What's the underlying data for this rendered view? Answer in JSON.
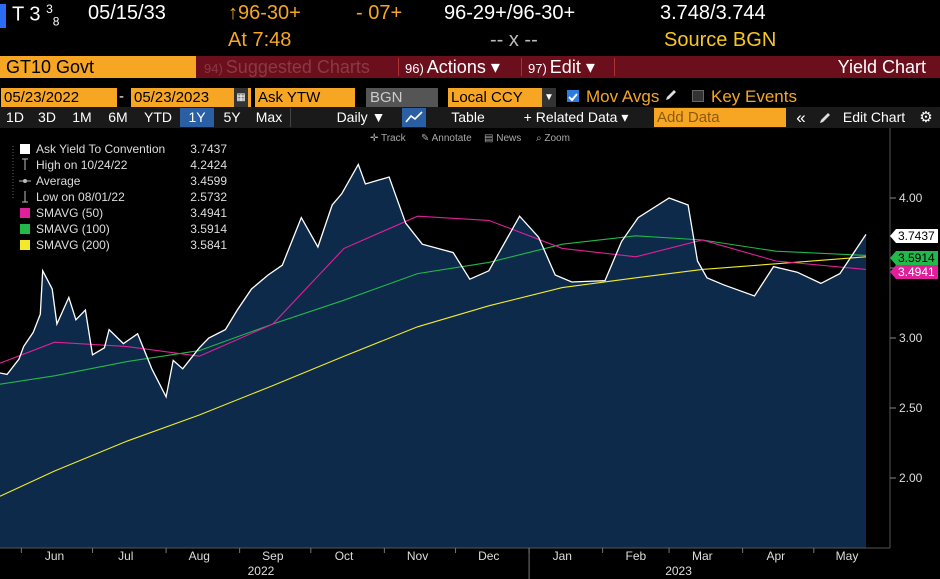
{
  "ticker": {
    "security": "T 3",
    "coupon_frac_num": "3",
    "coupon_frac_den": "8",
    "maturity": "05/15/33",
    "price": "↑96-30+",
    "change": "- 07+",
    "bid_ask": "96-29+/96-30+",
    "yields": "3.748/3.744",
    "time_label": "At 7:48",
    "dashes": "-- x --",
    "source": "Source BGN"
  },
  "function_bar": {
    "security_box": "GT10 Govt",
    "suggested_num": "94)",
    "suggested_label": "Suggested Charts",
    "actions_num": "96)",
    "actions_label": "Actions ▾",
    "edit_num": "97)",
    "edit_label": "Edit ▾",
    "title": "Yield Chart"
  },
  "controls": {
    "start_date": "05/23/2022",
    "end_date": "05/23/2023",
    "field": "Ask YTW",
    "source": "BGN",
    "currency": "Local CCY",
    "mov_avgs": "Mov Avgs",
    "key_events": "Key Events"
  },
  "ranges": [
    "1D",
    "3D",
    "1M",
    "6M",
    "YTD",
    "1Y",
    "5Y",
    "Max"
  ],
  "active_range": "1Y",
  "toolbar": {
    "frequency": "Daily ▼",
    "table": "Table",
    "related": "+ Related Data ▾",
    "add_data_placeholder": "Add Data",
    "collapse": "«",
    "edit_chart": "Edit Chart",
    "track": "Track",
    "annotate": "Annotate",
    "news": "News",
    "zoom": "Zoom"
  },
  "colors": {
    "orange": "#f6a623",
    "area_fill": "#0d2a4a",
    "yield_line": "#ffffff",
    "sma50": "#e0209a",
    "sma100": "#22b84a",
    "sma200": "#f2ea2a",
    "active_blue": "#2b5fa3"
  },
  "chart_data": {
    "type": "area",
    "x_axis": {
      "months": [
        "Jun",
        "Jul",
        "Aug",
        "Sep",
        "Oct",
        "Nov",
        "Dec",
        "Jan",
        "Feb",
        "Mar",
        "Apr",
        "May"
      ],
      "years": [
        "2022",
        "2023"
      ],
      "range": [
        "2022-05-23",
        "2023-05-23"
      ]
    },
    "y_axis": {
      "ticks": [
        "4.00",
        "3.50",
        "3.00",
        "2.50",
        "2.00"
      ],
      "range": [
        1.5,
        4.5
      ],
      "side": "right"
    },
    "legend": [
      {
        "label": "Ask Yield To Convention",
        "value": "3.7437"
      },
      {
        "label": "High on 10/24/22",
        "value": "4.2424"
      },
      {
        "label": "Average",
        "value": "3.4599"
      },
      {
        "label": "Low on 08/01/22",
        "value": "2.5732"
      },
      {
        "label": "SMAVG (50)",
        "value": "3.4941"
      },
      {
        "label": "SMAVG (100)",
        "value": "3.5914"
      },
      {
        "label": "SMAVG (200)",
        "value": "3.5841"
      }
    ],
    "last_value_tags": [
      {
        "series": "Ask Yield To Convention",
        "value": "3.7437"
      },
      {
        "series": "SMAVG (100)",
        "value": "3.5914"
      },
      {
        "series": "SMAVG (50)",
        "value": "3.4941"
      }
    ],
    "series": [
      {
        "name": "Ask Yield To Convention",
        "x": [
          "2022-05-23",
          "2022-05-26",
          "2022-05-31",
          "2022-06-02",
          "2022-06-06",
          "2022-06-09",
          "2022-06-10",
          "2022-06-14",
          "2022-06-16",
          "2022-06-21",
          "2022-06-24",
          "2022-06-28",
          "2022-07-01",
          "2022-07-06",
          "2022-07-08",
          "2022-07-14",
          "2022-07-20",
          "2022-07-26",
          "2022-08-01",
          "2022-08-04",
          "2022-08-08",
          "2022-08-15",
          "2022-08-19",
          "2022-08-26",
          "2022-08-31",
          "2022-09-06",
          "2022-09-13",
          "2022-09-19",
          "2022-09-27",
          "2022-10-04",
          "2022-10-10",
          "2022-10-14",
          "2022-10-21",
          "2022-10-24",
          "2022-11-03",
          "2022-11-10",
          "2022-11-17",
          "2022-11-30",
          "2022-12-07",
          "2022-12-15",
          "2022-12-28",
          "2023-01-05",
          "2023-01-12",
          "2023-01-19",
          "2023-02-02",
          "2023-02-09",
          "2023-02-16",
          "2023-03-01",
          "2023-03-09",
          "2023-03-13",
          "2023-03-17",
          "2023-03-24",
          "2023-04-06",
          "2023-04-14",
          "2023-04-24",
          "2023-05-04",
          "2023-05-12",
          "2023-05-23"
        ],
        "values": [
          2.75,
          2.74,
          2.85,
          2.94,
          3.04,
          3.17,
          3.48,
          3.35,
          3.1,
          3.29,
          3.13,
          3.2,
          2.88,
          2.93,
          3.06,
          2.96,
          3.03,
          2.78,
          2.58,
          2.84,
          2.78,
          2.93,
          3.0,
          3.06,
          3.2,
          3.35,
          3.45,
          3.52,
          3.86,
          3.65,
          3.95,
          4.03,
          4.24,
          4.1,
          4.15,
          3.82,
          3.67,
          3.61,
          3.42,
          3.48,
          3.87,
          3.72,
          3.45,
          3.4,
          3.41,
          3.69,
          3.86,
          4.0,
          3.95,
          3.55,
          3.43,
          3.38,
          3.3,
          3.51,
          3.47,
          3.39,
          3.46,
          3.74
        ]
      },
      {
        "name": "SMAVG (50)",
        "x": [
          "2022-05-23",
          "2022-06-15",
          "2022-07-15",
          "2022-08-15",
          "2022-09-15",
          "2022-10-15",
          "2022-11-15",
          "2022-12-15",
          "2023-01-15",
          "2023-02-15",
          "2023-03-15",
          "2023-04-15",
          "2023-05-23"
        ],
        "values": [
          2.82,
          2.97,
          2.94,
          2.87,
          3.1,
          3.64,
          3.87,
          3.84,
          3.64,
          3.58,
          3.7,
          3.55,
          3.49
        ]
      },
      {
        "name": "SMAVG (100)",
        "x": [
          "2022-05-23",
          "2022-06-15",
          "2022-07-15",
          "2022-08-15",
          "2022-09-15",
          "2022-10-15",
          "2022-11-15",
          "2022-12-15",
          "2023-01-15",
          "2023-02-15",
          "2023-03-15",
          "2023-04-15",
          "2023-05-23"
        ],
        "values": [
          2.67,
          2.73,
          2.83,
          2.91,
          3.1,
          3.27,
          3.46,
          3.54,
          3.67,
          3.73,
          3.7,
          3.62,
          3.59
        ]
      },
      {
        "name": "SMAVG (200)",
        "x": [
          "2022-05-23",
          "2022-06-15",
          "2022-07-15",
          "2022-08-15",
          "2022-09-15",
          "2022-10-15",
          "2022-11-15",
          "2022-12-15",
          "2023-01-15",
          "2023-02-15",
          "2023-03-15",
          "2023-04-15",
          "2023-05-23"
        ],
        "values": [
          1.87,
          2.05,
          2.26,
          2.45,
          2.66,
          2.87,
          3.08,
          3.23,
          3.36,
          3.43,
          3.49,
          3.53,
          3.58
        ]
      }
    ],
    "grid": false,
    "legend_position": "top-left"
  }
}
